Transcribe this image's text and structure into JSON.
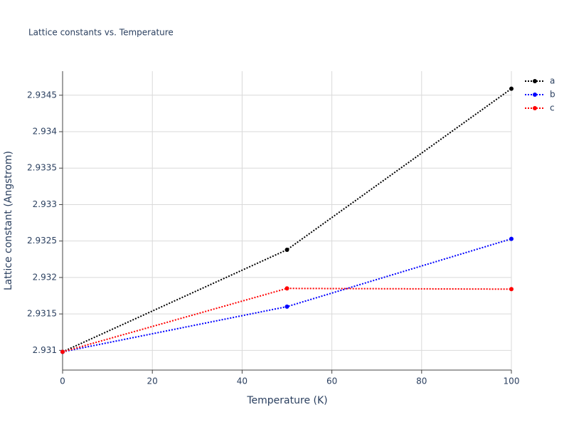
{
  "chart_data": {
    "type": "line",
    "title": "Lattice constants vs. Temperature",
    "x_label": "Temperature (K)",
    "y_label": "Lattice constant (Angstrom)",
    "x": [
      0,
      50,
      100
    ],
    "series": [
      {
        "name": "a",
        "color": "#000000",
        "values": [
          2.93098,
          2.93238,
          2.93459
        ]
      },
      {
        "name": "b",
        "color": "#0000ff",
        "values": [
          2.93098,
          2.9316,
          2.93253
        ]
      },
      {
        "name": "c",
        "color": "#ff0000",
        "values": [
          2.93098,
          2.93185,
          2.93184
        ]
      }
    ],
    "xlim": [
      0,
      100
    ],
    "xticks": [
      0,
      20,
      40,
      60,
      80,
      100
    ],
    "ylim": [
      2.93073,
      2.93483
    ],
    "yticks": [
      2.931,
      2.9315,
      2.932,
      2.9325,
      2.933,
      2.9335,
      2.934,
      2.9345
    ],
    "grid": true,
    "legend": "top-right"
  }
}
